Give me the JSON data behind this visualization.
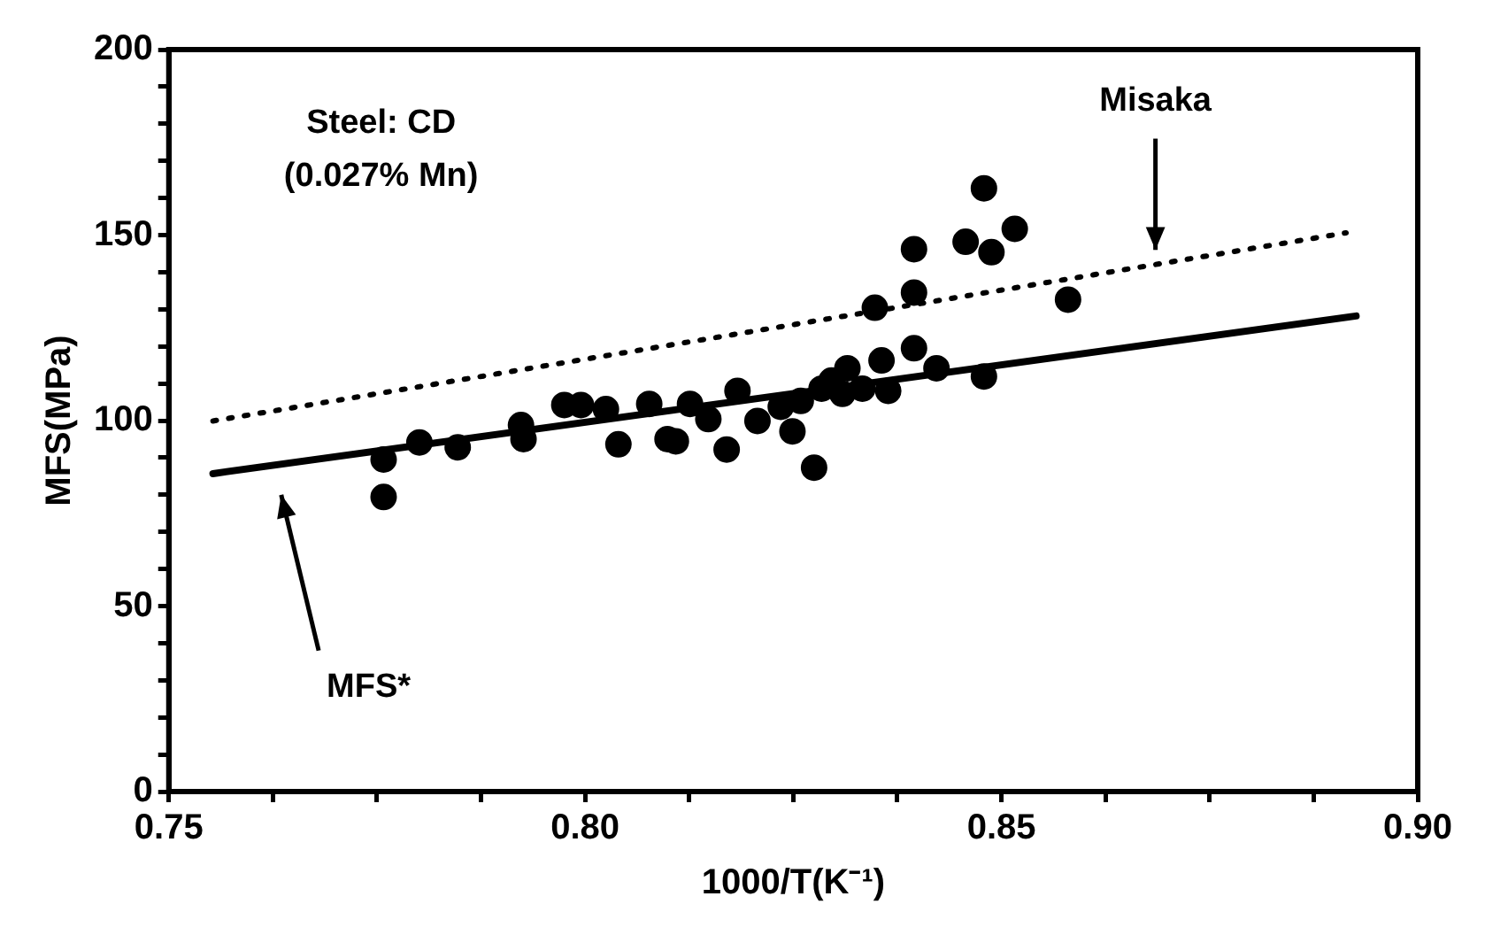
{
  "chart_data": {
    "type": "scatter",
    "xlabel": "1000/T(K⁻¹)",
    "ylabel": "MFS(MPa)",
    "annotations": [
      "Steel: CD\n(0.027% Mn)",
      "Misaka",
      "MFS*"
    ],
    "series": [
      {
        "marker": "circle",
        "color": "#000000",
        "x": [
          0.7758,
          0.7758,
          0.7801,
          0.7847,
          0.7923,
          0.7926,
          0.7975,
          0.7995,
          0.8025,
          0.804,
          0.8077,
          0.8099,
          0.8109,
          0.8126,
          0.8148,
          0.817,
          0.8183,
          0.8207,
          0.8235,
          0.8249,
          0.8259,
          0.8275,
          0.8284,
          0.8296,
          0.8315,
          0.8309,
          0.8333,
          0.8348,
          0.8356,
          0.8364,
          0.8395,
          0.8395,
          0.8395,
          0.8422,
          0.8457,
          0.8479,
          0.8488,
          0.8516,
          0.8479,
          0.858
        ],
        "values": [
          89.5,
          79.4,
          94.1,
          92.8,
          98.8,
          95.0,
          104.2,
          104.2,
          103.1,
          93.6,
          104.5,
          95.0,
          94.4,
          104.5,
          100.4,
          92.2,
          108.0,
          99.9,
          103.7,
          97.1,
          105.3,
          87.3,
          108.6,
          110.8,
          114.1,
          107.2,
          108.6,
          130.4,
          116.2,
          108.0,
          146.2,
          134.5,
          119.5,
          114.1,
          148.2,
          162.6,
          145.4,
          151.7,
          111.9,
          132.6
        ]
      },
      {
        "type": "line",
        "color": "#000000",
        "line_style": "solid",
        "marker": "none",
        "x": [
          0.7553,
          0.8926
        ],
        "values": [
          85.7,
          128.2
        ]
      },
      {
        "type": "line",
        "color": "#000000",
        "line_style": "dotted",
        "marker": "none",
        "x": [
          0.7553,
          0.8914
        ],
        "values": [
          99.9,
          150.6
        ]
      }
    ],
    "xlim": [
      0.75,
      0.9
    ],
    "xticks": [
      0.75,
      {
        "value": 0.7625,
        "label": null
      },
      {
        "value": 0.775,
        "label": null
      },
      {
        "value": 0.7875,
        "label": null
      },
      {
        "value": 0.8,
        "label": "0.80"
      },
      {
        "value": 0.8125,
        "label": null
      },
      {
        "value": 0.825,
        "label": null
      },
      {
        "value": 0.8375,
        "label": null
      },
      0.85,
      {
        "value": 0.8625,
        "label": null
      },
      {
        "value": 0.875,
        "label": null
      },
      {
        "value": 0.8875,
        "label": null
      },
      {
        "value": 0.9,
        "label": "0.90"
      }
    ],
    "ylim": [
      0,
      200
    ],
    "yticks": [
      0,
      {
        "value": 10,
        "label": null
      },
      {
        "value": 20,
        "label": null
      },
      {
        "value": 30,
        "label": null
      },
      {
        "value": 40,
        "label": null
      },
      50,
      {
        "value": 60,
        "label": null
      },
      {
        "value": 70,
        "label": null
      },
      {
        "value": 80,
        "label": null
      },
      {
        "value": 90,
        "label": null
      },
      100,
      {
        "value": 110,
        "label": null
      },
      {
        "value": 120,
        "label": null
      },
      {
        "value": 130,
        "label": null
      },
      {
        "value": 140,
        "label": null
      },
      150,
      {
        "value": 160,
        "label": null
      },
      {
        "value": 170,
        "label": null
      },
      {
        "value": 180,
        "label": null
      },
      {
        "value": 190,
        "label": null
      },
      200
    ],
    "grid": false,
    "legend": false
  }
}
